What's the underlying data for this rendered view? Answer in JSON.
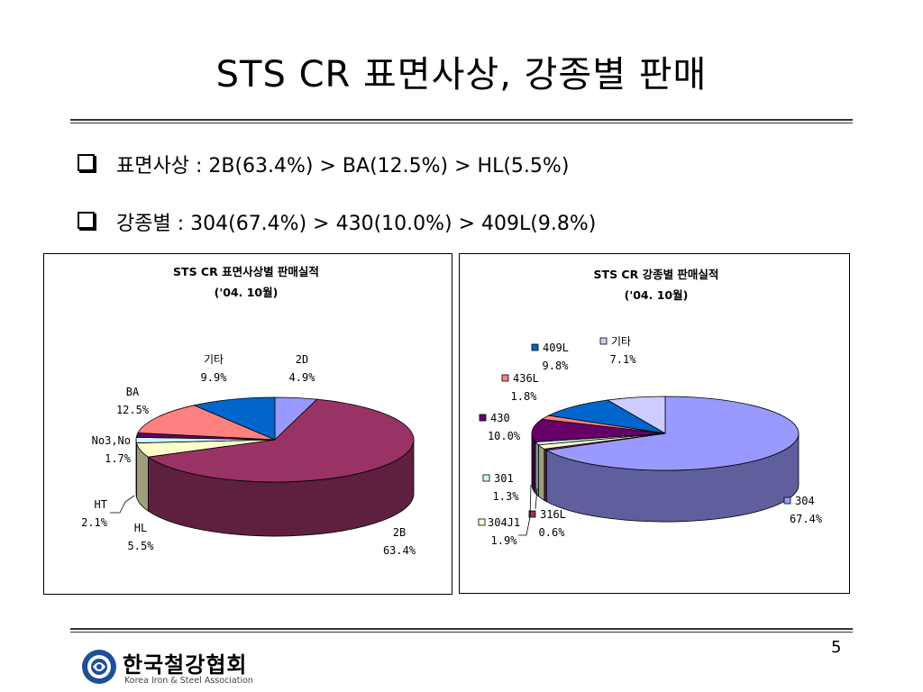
{
  "slide": {
    "title": "STS CR 표면사상, 강종별 판매",
    "bullets": [
      "표면사상 : 2B(63.4%) > BA(12.5%) > HL(5.5%)",
      "강종별 : 304(67.4%) > 430(10.0%) > 409L(9.8%)"
    ],
    "page_number": "5",
    "logo": {
      "name_ko": "한국철강협회",
      "name_en": "Korea Iron & Steel Association",
      "icon": "association-logo-icon"
    }
  },
  "chart_data": [
    {
      "type": "pie",
      "variant": "3d",
      "title": "STS CR 표면사상별 판매실적",
      "subtitle": "('04. 10월)",
      "slices": [
        {
          "label": "2D",
          "value": 4.9,
          "value_label": "4.9%",
          "color": "#9999FF"
        },
        {
          "label": "2B",
          "value": 63.4,
          "value_label": "63.4%",
          "color": "#993366"
        },
        {
          "label": "HL",
          "value": 5.5,
          "value_label": "5.5%",
          "color": "#FFFFCC"
        },
        {
          "label": "HT",
          "value": 2.1,
          "value_label": "2.1%",
          "color": "#CCFFFF"
        },
        {
          "label": "No3,No4",
          "display_label": "No3,No",
          "value": 1.7,
          "value_label": "1.7%",
          "color": "#660066"
        },
        {
          "label": "BA",
          "value": 12.5,
          "value_label": "12.5%",
          "color": "#FF8080"
        },
        {
          "label": "기타",
          "value": 9.9,
          "value_label": "9.9%",
          "color": "#0066CC"
        }
      ]
    },
    {
      "type": "pie",
      "variant": "3d",
      "title": "STS CR 강종별 판매실적",
      "subtitle": "('04. 10월)",
      "slices": [
        {
          "label": "304",
          "value": 67.4,
          "value_label": "67.4%",
          "color": "#9999FF"
        },
        {
          "label": "316L",
          "value": 0.6,
          "value_label": "0.6%",
          "color": "#993366"
        },
        {
          "label": "304J1",
          "value": 1.9,
          "value_label": "1.9%",
          "color": "#FFFFCC"
        },
        {
          "label": "301",
          "value": 1.3,
          "value_label": "1.3%",
          "color": "#CCFFFF"
        },
        {
          "label": "430",
          "value": 10.0,
          "value_label": "10.0%",
          "color": "#660066"
        },
        {
          "label": "436L",
          "value": 1.8,
          "value_label": "1.8%",
          "color": "#FF8080"
        },
        {
          "label": "409L",
          "value": 9.8,
          "value_label": "9.8%",
          "color": "#0066CC"
        },
        {
          "label": "기타",
          "value": 7.1,
          "value_label": "7.1%",
          "color": "#CCCCFF"
        }
      ]
    }
  ]
}
